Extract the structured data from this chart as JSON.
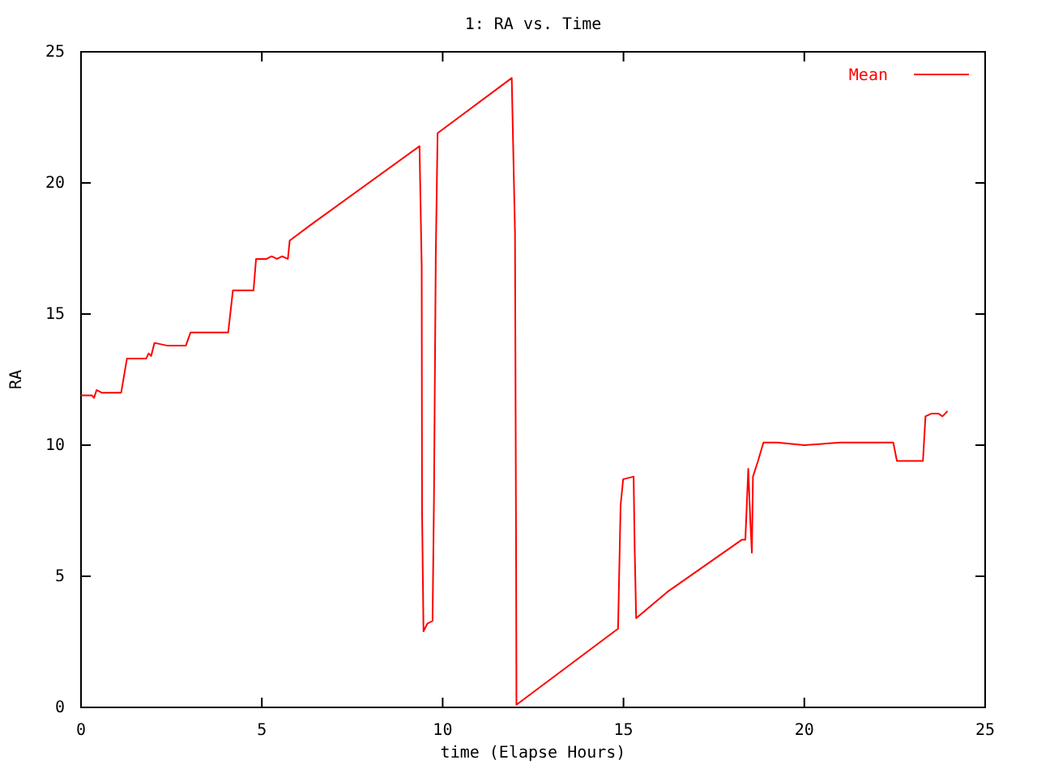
{
  "chart_data": {
    "type": "line",
    "title": "1: RA vs. Time",
    "xlabel": "time (Elapse Hours)",
    "ylabel": "RA",
    "xlim": [
      0,
      25
    ],
    "xticks": [
      0,
      5,
      10,
      15,
      20,
      25
    ],
    "ylim": [
      0,
      25
    ],
    "yticks": [
      0,
      5,
      10,
      15,
      20,
      25
    ],
    "grid": false,
    "legend": "top right",
    "marker": "none",
    "line_style": "solid",
    "series": [
      {
        "name": "Mean",
        "color": "#ff0000",
        "x": [
          0,
          0.3,
          0.36,
          0.43,
          0.57,
          1.11,
          1.27,
          1.8,
          1.87,
          1.94,
          2.03,
          2.37,
          2.9,
          3.03,
          3.4,
          4.07,
          4.2,
          4.77,
          4.84,
          5.13,
          5.27,
          5.42,
          5.56,
          5.72,
          5.77,
          6.35,
          9.36,
          9.42,
          9.43,
          9.47,
          9.58,
          9.72,
          9.76,
          9.81,
          9.86,
          11.91,
          12.0,
          12.03,
          12.04,
          14.85,
          14.92,
          14.99,
          15.28,
          15.31,
          15.35,
          16.21,
          18.28,
          18.37,
          18.45,
          18.51,
          18.55,
          18.58,
          18.72,
          18.87,
          19.26,
          20,
          21,
          22.46,
          22.56,
          23.28,
          23.35,
          23.51,
          23.71,
          23.82,
          23.96
        ],
        "values": [
          11.9,
          11.9,
          11.8,
          12.1,
          12.0,
          12.0,
          13.3,
          13.3,
          13.5,
          13.4,
          13.9,
          13.8,
          13.8,
          14.3,
          14.3,
          14.3,
          15.9,
          15.9,
          17.1,
          17.1,
          17.2,
          17.1,
          17.2,
          17.1,
          17.8,
          18.4,
          21.4,
          16.8,
          7.5,
          2.9,
          3.2,
          3.3,
          8.0,
          17.3,
          21.9,
          24.0,
          18.1,
          6.0,
          0.1,
          3.0,
          7.7,
          8.7,
          8.8,
          6.0,
          3.4,
          4.4,
          6.4,
          6.4,
          9.1,
          7.0,
          5.9,
          8.8,
          9.4,
          10.1,
          10.1,
          10.0,
          10.1,
          10.1,
          9.4,
          9.4,
          11.1,
          11.2,
          11.2,
          11.1,
          11.3
        ]
      }
    ]
  }
}
